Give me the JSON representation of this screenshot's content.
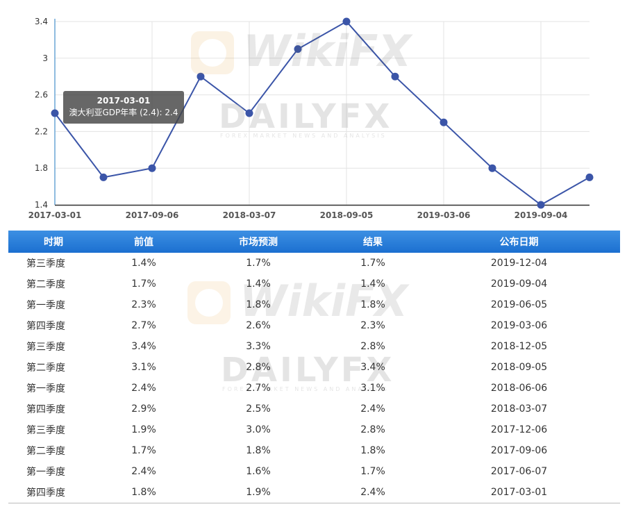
{
  "chart_data": {
    "type": "line",
    "x": [
      "2017-03-01",
      "2017-06-07",
      "2017-09-06",
      "2017-12-06",
      "2018-03-07",
      "2018-06-06",
      "2018-09-05",
      "2018-12-05",
      "2019-03-06",
      "2019-06-05",
      "2019-09-04",
      "2019-12-04"
    ],
    "x_tick_labels": [
      "2017-03-01",
      "2017-09-06",
      "2018-03-07",
      "2018-09-05",
      "2019-03-06",
      "2019-09-04"
    ],
    "y_tick_labels": [
      "1.4",
      "1.8",
      "2.2",
      "2.6",
      "3",
      "3.4"
    ],
    "ylim": [
      1.4,
      3.4
    ],
    "series": [
      {
        "name": "澳大利亚GDP年率",
        "values": [
          2.4,
          1.7,
          1.8,
          2.8,
          2.4,
          3.1,
          3.4,
          2.8,
          2.3,
          1.8,
          1.4,
          1.7
        ],
        "color": "#3b55a8"
      }
    ],
    "grid": true,
    "tooltip": {
      "title": "2017-03-01",
      "text": "澳大利亚GDP年率 (2.4): 2.4"
    }
  },
  "watermarks": {
    "wikifx": "WikiFX",
    "dailyfx": "DAILYFX",
    "dailyfx_sub": "FOREX MARKET NEWS AND ANALYSIS"
  },
  "table": {
    "headers": [
      "时期",
      "前值",
      "市场预测",
      "结果",
      "公布日期"
    ],
    "rows": [
      [
        "第三季度",
        "1.4%",
        "1.7%",
        "1.7%",
        "2019-12-04"
      ],
      [
        "第二季度",
        "1.7%",
        "1.4%",
        "1.4%",
        "2019-09-04"
      ],
      [
        "第一季度",
        "2.3%",
        "1.8%",
        "1.8%",
        "2019-06-05"
      ],
      [
        "第四季度",
        "2.7%",
        "2.6%",
        "2.3%",
        "2019-03-06"
      ],
      [
        "第三季度",
        "3.4%",
        "3.3%",
        "2.8%",
        "2018-12-05"
      ],
      [
        "第二季度",
        "3.1%",
        "2.8%",
        "3.4%",
        "2018-09-05"
      ],
      [
        "第一季度",
        "2.4%",
        "2.7%",
        "3.1%",
        "2018-06-06"
      ],
      [
        "第四季度",
        "2.9%",
        "2.5%",
        "2.4%",
        "2018-03-07"
      ],
      [
        "第三季度",
        "1.9%",
        "3.0%",
        "2.8%",
        "2017-12-06"
      ],
      [
        "第二季度",
        "1.7%",
        "1.8%",
        "1.8%",
        "2017-09-06"
      ],
      [
        "第一季度",
        "2.4%",
        "1.6%",
        "1.7%",
        "2017-06-07"
      ],
      [
        "第四季度",
        "1.8%",
        "1.9%",
        "2.4%",
        "2017-03-01"
      ]
    ]
  },
  "colors": {
    "header_bg": "#2a7dd8",
    "line": "#3b55a8",
    "grid": "#e3e3e3"
  }
}
